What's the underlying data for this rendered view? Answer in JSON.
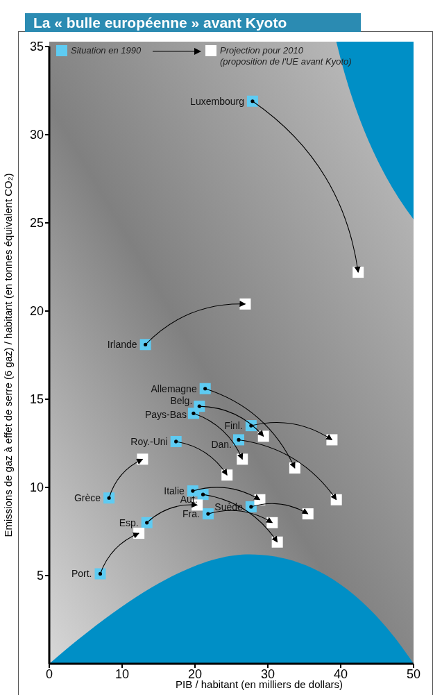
{
  "chart_data": {
    "type": "scatter",
    "title": "La « bulle européenne » avant Kyoto",
    "xlabel": "PIB / habitant (en milliers de dollars)",
    "ylabel": "Emissions de gaz à effet de serre (6 gaz) / habitant (en tonnes équivalent CO₂)",
    "xlim": [
      0,
      50
    ],
    "xticks": [
      0,
      10,
      20,
      30,
      40,
      50
    ],
    "ylim": [
      0,
      35
    ],
    "yticks": [
      5,
      10,
      15,
      20,
      25,
      30,
      35
    ],
    "marker": "square",
    "legend": "top left",
    "series": [
      {
        "name": "Situation en 1990",
        "color": "#5ecbf2",
        "x": [
          27.9,
          13.2,
          21.4,
          20.6,
          19.8,
          27.7,
          26.0,
          17.4,
          8.2,
          19.7,
          21.1,
          13.4,
          27.7,
          21.8,
          7.0
        ],
        "values": [
          31.9,
          18.1,
          15.6,
          14.6,
          14.2,
          13.5,
          12.7,
          12.6,
          9.4,
          9.8,
          9.6,
          8.0,
          8.9,
          8.5,
          5.1
        ]
      },
      {
        "name": "Projection pour 2010 (proposition de l'UE avant Kyoto)",
        "color": "#ffffff",
        "x": [
          42.4,
          26.9,
          33.7,
          29.4,
          26.5,
          38.8,
          39.4,
          24.4,
          12.8,
          28.9,
          31.3,
          20.3,
          35.5,
          30.6,
          12.3
        ],
        "values": [
          22.2,
          20.4,
          11.1,
          12.9,
          11.6,
          12.7,
          9.3,
          10.7,
          11.6,
          9.3,
          6.9,
          9.0,
          8.5,
          8.0,
          7.4
        ]
      }
    ],
    "annotations": [
      {
        "text": "Luxembourg",
        "x": 27.9,
        "y": 31.9
      },
      {
        "text": "Irlande",
        "x": 13.2,
        "y": 18.1
      },
      {
        "text": "Allemagne",
        "x": 21.4,
        "y": 15.6
      },
      {
        "text": "Belg.",
        "x": 20.6,
        "y": 14.6
      },
      {
        "text": "Pays-Bas",
        "x": 19.8,
        "y": 14.2
      },
      {
        "text": "Finl.",
        "x": 27.7,
        "y": 13.5
      },
      {
        "text": "Dan.",
        "x": 26.0,
        "y": 12.7
      },
      {
        "text": "Roy.-Uni",
        "x": 17.4,
        "y": 12.6
      },
      {
        "text": "Grèce",
        "x": 8.2,
        "y": 9.4
      },
      {
        "text": "Italie",
        "x": 19.7,
        "y": 9.8
      },
      {
        "text": "Aut.",
        "x": 21.1,
        "y": 9.6
      },
      {
        "text": "Esp.",
        "x": 13.4,
        "y": 8.0
      },
      {
        "text": "Suède",
        "x": 27.7,
        "y": 8.9
      },
      {
        "text": "Fra.",
        "x": 21.8,
        "y": 8.5
      },
      {
        "text": "Port.",
        "x": 7.0,
        "y": 5.1
      }
    ]
  }
}
